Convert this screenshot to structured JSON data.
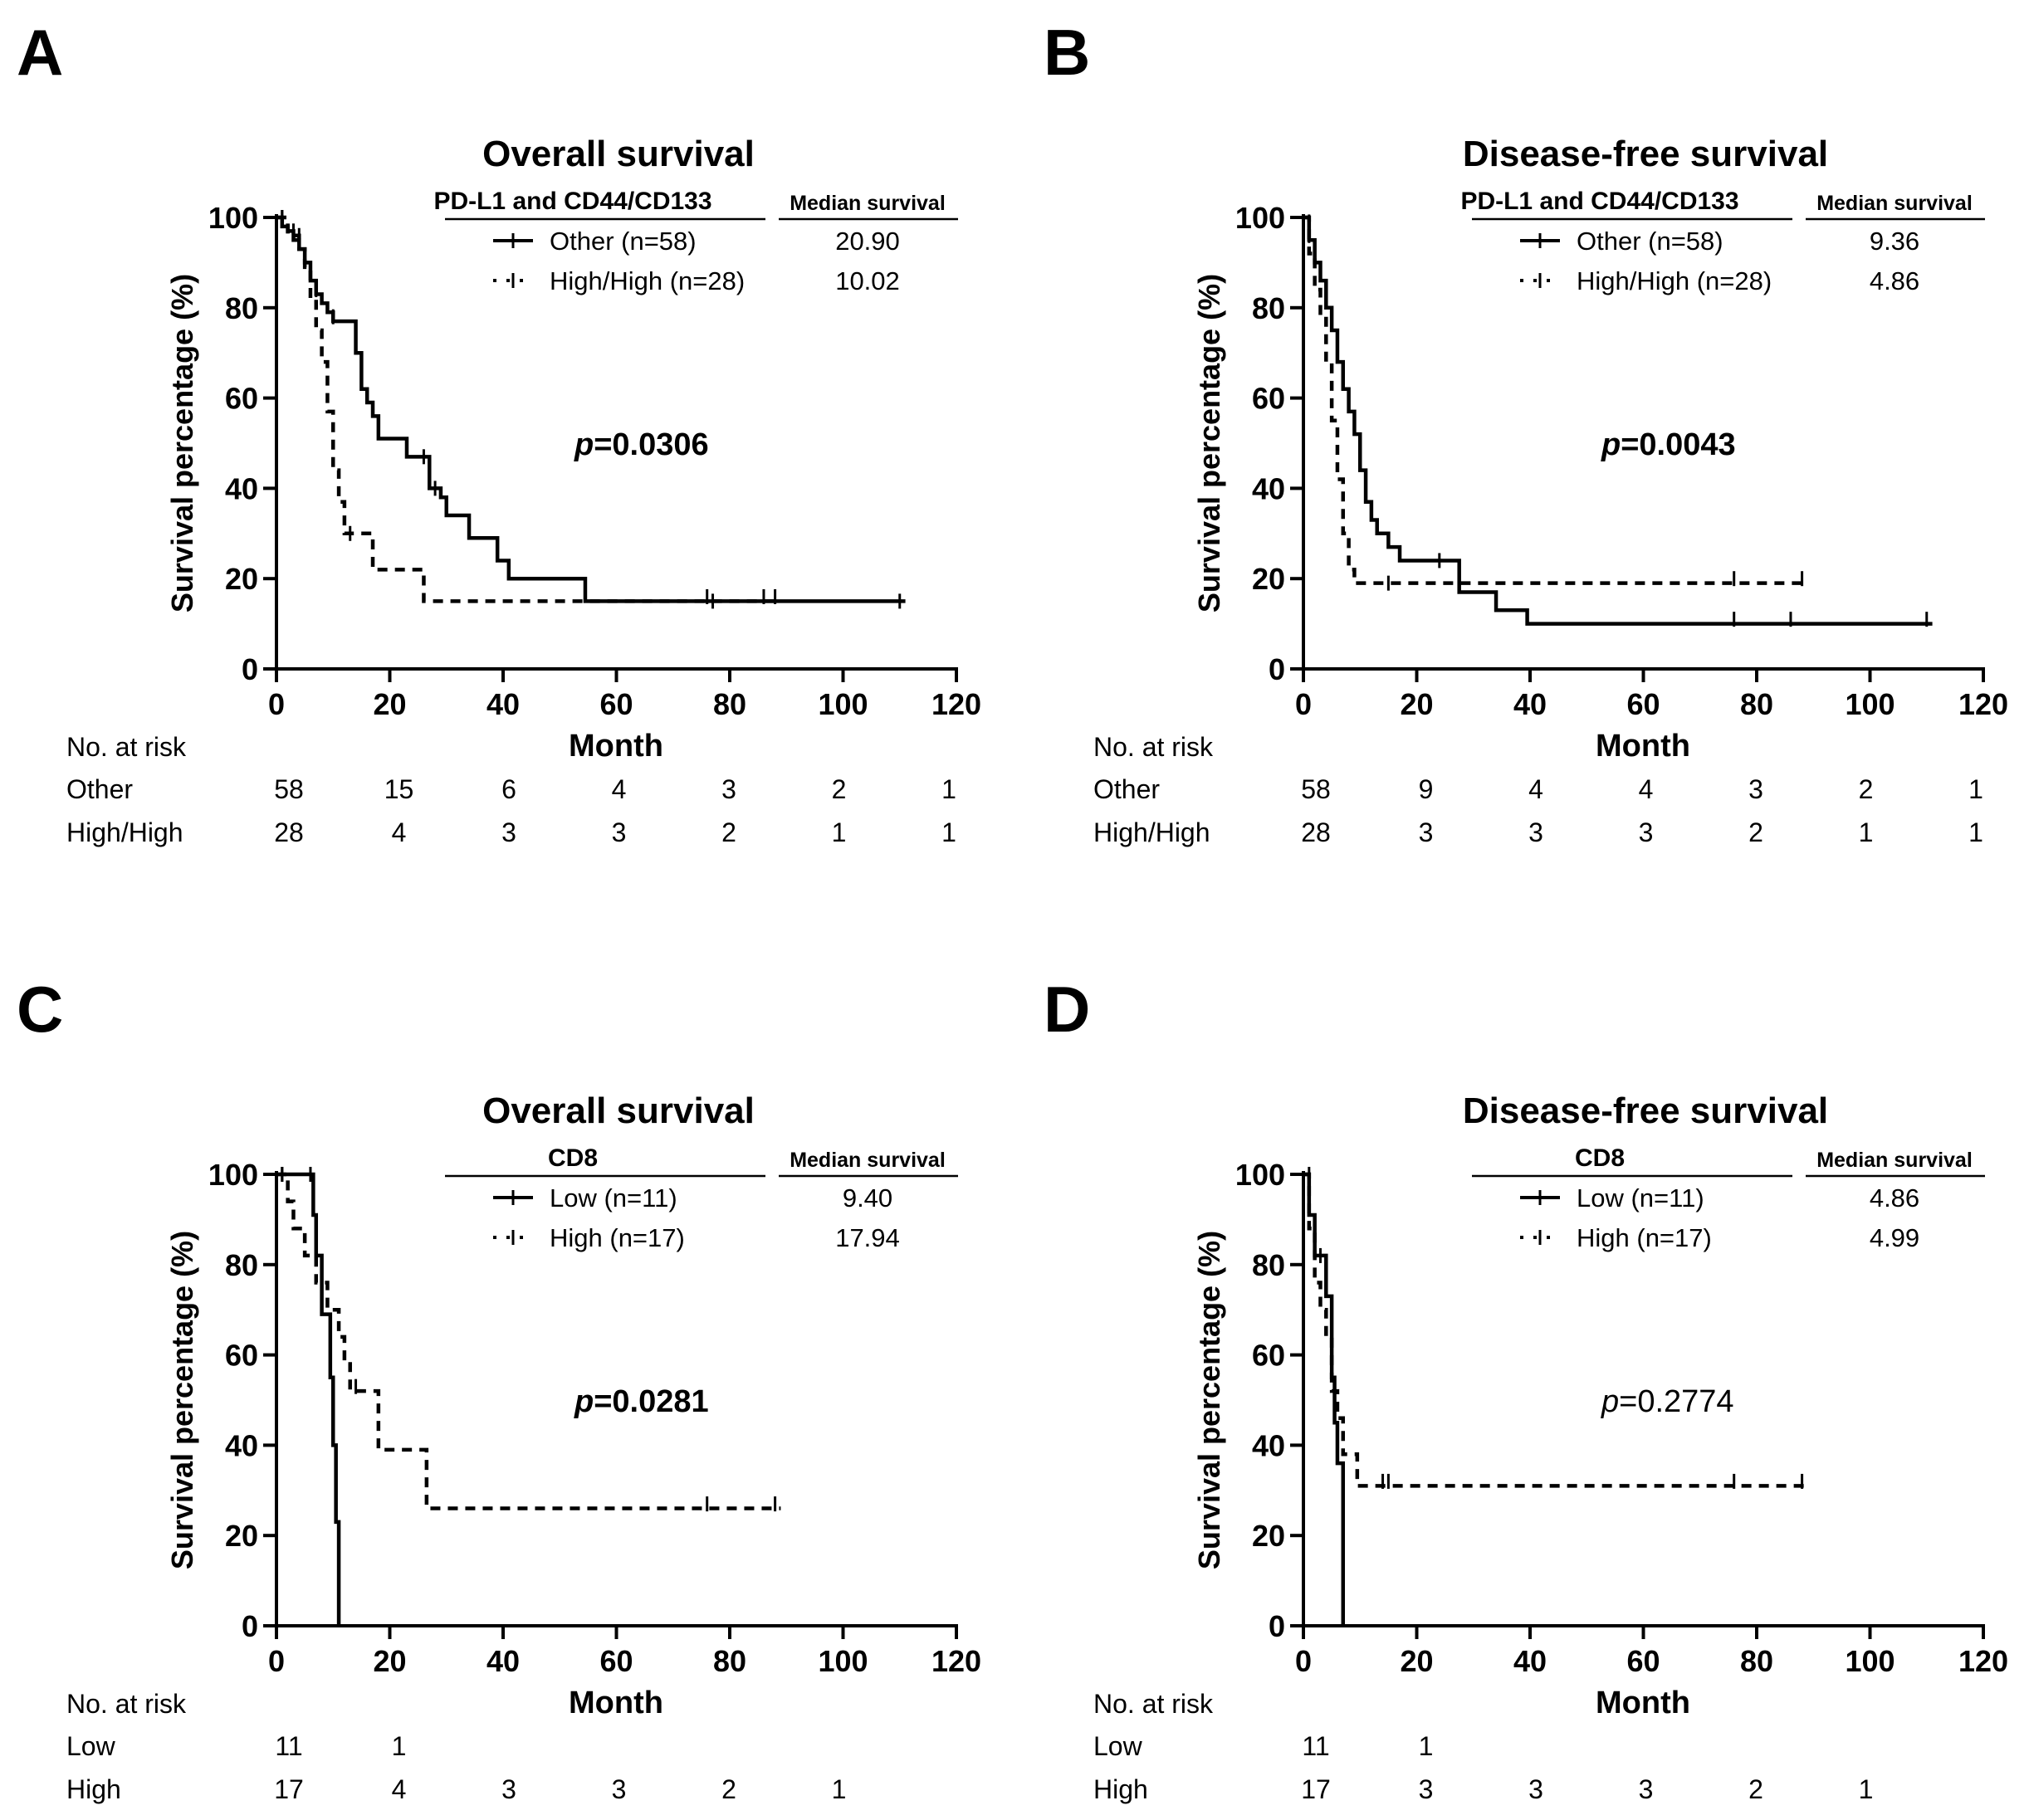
{
  "chart_data": [
    {
      "panel": "A",
      "type": "line",
      "title": "Overall survival",
      "xlabel": "Month",
      "ylabel": "Survival percentage (%)",
      "xlim": [
        0,
        120
      ],
      "ylim": [
        0,
        100
      ],
      "xticks": [
        "0",
        "20",
        "40",
        "60",
        "80",
        "100",
        "120"
      ],
      "yticks": [
        "0",
        "20",
        "40",
        "60",
        "80",
        "100"
      ],
      "legend_header": "PD-L1 and CD44/CD133",
      "median_header": "Median survival",
      "p_prefix": "p",
      "p_value": "=0.0306",
      "p_bold": true,
      "risk_header": "No. at risk",
      "series": [
        {
          "name": "Other",
          "legend_label": "Other  (n=58)",
          "median": "20.90",
          "style": "solid",
          "points": [
            [
              0,
              100
            ],
            [
              1,
              98
            ],
            [
              2,
              97
            ],
            [
              3,
              95
            ],
            [
              4,
              93
            ],
            [
              5,
              90
            ],
            [
              6,
              86
            ],
            [
              7,
              83
            ],
            [
              8,
              81
            ],
            [
              9,
              79
            ],
            [
              10,
              77
            ],
            [
              13,
              77
            ],
            [
              14,
              70
            ],
            [
              15,
              62
            ],
            [
              16,
              59
            ],
            [
              17,
              56
            ],
            [
              18,
              51
            ],
            [
              22,
              51
            ],
            [
              23,
              47
            ],
            [
              26,
              47
            ],
            [
              27,
              40
            ],
            [
              29,
              38
            ],
            [
              30,
              34
            ],
            [
              33,
              34
            ],
            [
              34,
              29
            ],
            [
              38,
              29
            ],
            [
              39,
              24
            ],
            [
              41,
              20
            ],
            [
              54,
              20
            ],
            [
              54.5,
              15
            ],
            [
              111,
              15
            ]
          ],
          "censors": [
            [
              1,
              100
            ],
            [
              4,
              96
            ],
            [
              7,
              84
            ],
            [
              10,
              78
            ],
            [
              26,
              47
            ],
            [
              28,
              40
            ],
            [
              76,
              16
            ],
            [
              86,
              16
            ],
            [
              88,
              16
            ],
            [
              110,
              15
            ]
          ],
          "risk_label": "Other",
          "risk": [
            "58",
            "15",
            "6",
            "4",
            "3",
            "2",
            "1"
          ]
        },
        {
          "name": "High/High",
          "legend_label": "High/High (n=28)",
          "median": "10.02",
          "style": "dashed",
          "points": [
            [
              0,
              100
            ],
            [
              2,
              96
            ],
            [
              4,
              93
            ],
            [
              5,
              89
            ],
            [
              6,
              82
            ],
            [
              7,
              75
            ],
            [
              8,
              68
            ],
            [
              9,
              57
            ],
            [
              10,
              44
            ],
            [
              11,
              37
            ],
            [
              12,
              30
            ],
            [
              16,
              30
            ],
            [
              17,
              22
            ],
            [
              22,
              22
            ],
            [
              26,
              15
            ],
            [
              88,
              15
            ]
          ],
          "censors": [
            [
              1,
              100
            ],
            [
              3,
              97
            ],
            [
              13,
              30
            ],
            [
              77,
              15
            ]
          ],
          "risk_label": "High/High",
          "risk": [
            "28",
            "4",
            "3",
            "3",
            "2",
            "1",
            "1"
          ]
        }
      ]
    },
    {
      "panel": "B",
      "type": "line",
      "title": "Disease-free survival",
      "xlabel": "Month",
      "ylabel": "Survival percentage (%)",
      "xlim": [
        0,
        120
      ],
      "ylim": [
        0,
        100
      ],
      "xticks": [
        "0",
        "20",
        "40",
        "60",
        "80",
        "100",
        "120"
      ],
      "yticks": [
        "0",
        "20",
        "40",
        "60",
        "80",
        "100"
      ],
      "legend_header": "PD-L1 and CD44/CD133",
      "median_header": "Median survival",
      "p_prefix": "p",
      "p_value": "=0.0043",
      "p_bold": true,
      "risk_header": "No. at risk",
      "series": [
        {
          "name": "Other",
          "legend_label": "Other  (n=58)",
          "median": "9.36",
          "style": "solid",
          "points": [
            [
              0,
              100
            ],
            [
              1,
              95
            ],
            [
              2,
              90
            ],
            [
              3,
              86
            ],
            [
              4,
              80
            ],
            [
              5,
              75
            ],
            [
              6,
              68
            ],
            [
              7,
              62
            ],
            [
              8,
              57
            ],
            [
              9,
              52
            ],
            [
              10,
              44
            ],
            [
              11,
              37
            ],
            [
              12,
              33
            ],
            [
              13,
              30
            ],
            [
              15,
              27
            ],
            [
              17,
              24
            ],
            [
              27,
              24
            ],
            [
              27.5,
              17
            ],
            [
              33,
              17
            ],
            [
              34,
              13
            ],
            [
              39,
              13
            ],
            [
              39.5,
              10
            ],
            [
              111,
              10
            ]
          ],
          "censors": [
            [
              1,
              99
            ],
            [
              24,
              24
            ],
            [
              76,
              11
            ],
            [
              86,
              11
            ],
            [
              110,
              11
            ]
          ],
          "risk_label": "Other",
          "risk": [
            "58",
            "9",
            "4",
            "4",
            "3",
            "2",
            "1"
          ]
        },
        {
          "name": "High/High",
          "legend_label": "High/High (n=28)",
          "median": "4.86",
          "style": "dashed",
          "points": [
            [
              0,
              100
            ],
            [
              1,
              92
            ],
            [
              2,
              84
            ],
            [
              3,
              78
            ],
            [
              4,
              68
            ],
            [
              5,
              55
            ],
            [
              6,
              42
            ],
            [
              7,
              30
            ],
            [
              8,
              22
            ],
            [
              9,
              19
            ],
            [
              88,
              19
            ]
          ],
          "censors": [
            [
              1,
              96
            ],
            [
              15,
              19
            ],
            [
              76,
              20
            ],
            [
              88,
              20
            ]
          ],
          "risk_label": "High/High",
          "risk": [
            "28",
            "3",
            "3",
            "3",
            "2",
            "1",
            "1"
          ]
        }
      ]
    },
    {
      "panel": "C",
      "type": "line",
      "title": "Overall survival",
      "xlabel": "Month",
      "ylabel": "Survival percentage (%)",
      "xlim": [
        0,
        120
      ],
      "ylim": [
        0,
        100
      ],
      "xticks": [
        "0",
        "20",
        "40",
        "60",
        "80",
        "100",
        "120"
      ],
      "yticks": [
        "0",
        "20",
        "40",
        "60",
        "80",
        "100"
      ],
      "legend_header": "CD8",
      "median_header": "Median survival",
      "p_prefix": "p",
      "p_value": "=0.0281",
      "p_bold": true,
      "risk_header": "No. at risk",
      "series": [
        {
          "name": "Low",
          "legend_label": "Low (n=11)",
          "median": "9.40",
          "style": "solid",
          "points": [
            [
              0,
              100
            ],
            [
              6,
              100
            ],
            [
              6.5,
              91
            ],
            [
              7,
              82
            ],
            [
              8,
              69
            ],
            [
              9,
              69
            ],
            [
              9.5,
              55
            ],
            [
              10,
              40
            ],
            [
              10.5,
              23
            ],
            [
              11,
              23
            ],
            [
              11,
              0
            ]
          ],
          "censors": [
            [
              1,
              100
            ],
            [
              6,
              100
            ]
          ],
          "risk_label": "Low",
          "risk": [
            "11",
            "1",
            "",
            "",
            "",
            "",
            ""
          ]
        },
        {
          "name": "High",
          "legend_label": "High (n=17)",
          "median": "17.94",
          "style": "dashed",
          "points": [
            [
              0,
              100
            ],
            [
              2,
              94
            ],
            [
              3,
              88
            ],
            [
              5,
              82
            ],
            [
              7,
              76
            ],
            [
              9,
              70
            ],
            [
              11,
              64
            ],
            [
              12,
              58
            ],
            [
              13,
              52
            ],
            [
              17,
              52
            ],
            [
              18,
              39
            ],
            [
              26,
              39
            ],
            [
              26.5,
              26
            ],
            [
              89,
              26
            ]
          ],
          "censors": [
            [
              1,
              100
            ],
            [
              14,
              53
            ],
            [
              76,
              27
            ],
            [
              88,
              27
            ]
          ],
          "risk_label": "High",
          "risk": [
            "17",
            "4",
            "3",
            "3",
            "2",
            "1",
            ""
          ]
        }
      ]
    },
    {
      "panel": "D",
      "type": "line",
      "title": "Disease-free survival",
      "xlabel": "Month",
      "ylabel": "Survival percentage (%)",
      "xlim": [
        0,
        120
      ],
      "ylim": [
        0,
        100
      ],
      "xticks": [
        "0",
        "20",
        "40",
        "60",
        "80",
        "100",
        "120"
      ],
      "yticks": [
        "0",
        "20",
        "40",
        "60",
        "80",
        "100"
      ],
      "legend_header": "CD8",
      "median_header": "Median survival",
      "p_prefix": "p",
      "p_value": "=0.2774",
      "p_bold": false,
      "risk_header": "No. at risk",
      "series": [
        {
          "name": "Low",
          "legend_label": "Low (n=11)",
          "median": "4.86",
          "style": "solid",
          "points": [
            [
              0,
              100
            ],
            [
              1,
              91
            ],
            [
              2,
              82
            ],
            [
              3,
              82
            ],
            [
              4,
              73
            ],
            [
              5,
              55
            ],
            [
              5.5,
              45
            ],
            [
              6,
              36
            ],
            [
              7,
              12
            ],
            [
              7,
              0
            ]
          ],
          "censors": [
            [
              1,
              100
            ],
            [
              3,
              82
            ]
          ],
          "risk_label": "Low",
          "risk": [
            "11",
            "1",
            "",
            "",
            "",
            "",
            ""
          ]
        },
        {
          "name": "High",
          "legend_label": "High (n=17)",
          "median": "4.99",
          "style": "dashed",
          "points": [
            [
              0,
              100
            ],
            [
              1,
              88
            ],
            [
              2,
              76
            ],
            [
              3,
              70
            ],
            [
              4,
              64
            ],
            [
              5,
              52
            ],
            [
              6,
              46
            ],
            [
              7,
              38
            ],
            [
              9,
              38
            ],
            [
              9.5,
              31
            ],
            [
              89,
              31
            ]
          ],
          "censors": [
            [
              1,
              98
            ],
            [
              14,
              32
            ],
            [
              15,
              32
            ],
            [
              76,
              32
            ],
            [
              88,
              32
            ]
          ],
          "risk_label": "High",
          "risk": [
            "17",
            "3",
            "3",
            "3",
            "2",
            "1",
            ""
          ]
        }
      ]
    }
  ]
}
